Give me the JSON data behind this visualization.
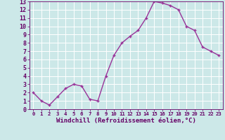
{
  "x": [
    0,
    1,
    2,
    3,
    4,
    5,
    6,
    7,
    8,
    9,
    10,
    11,
    12,
    13,
    14,
    15,
    16,
    17,
    18,
    19,
    20,
    21,
    22,
    23
  ],
  "y": [
    2,
    1,
    0.5,
    1.5,
    2.5,
    3,
    2.8,
    1.2,
    1,
    4,
    6.5,
    8,
    8.8,
    9.5,
    11,
    13,
    12.8,
    12.5,
    12,
    10,
    9.5,
    7.5,
    7,
    6.5
  ],
  "line_color": "#993399",
  "marker": "+",
  "marker_color": "#993399",
  "bg_color": "#cce8e8",
  "grid_color": "#ffffff",
  "xlabel": "Windchill (Refroidissement éolien,°C)",
  "xlim": [
    -0.5,
    23.5
  ],
  "ylim": [
    0,
    13
  ],
  "yticks": [
    0,
    1,
    2,
    3,
    4,
    5,
    6,
    7,
    8,
    9,
    10,
    11,
    12,
    13
  ],
  "xticks": [
    0,
    1,
    2,
    3,
    4,
    5,
    6,
    7,
    8,
    9,
    10,
    11,
    12,
    13,
    14,
    15,
    16,
    17,
    18,
    19,
    20,
    21,
    22,
    23
  ],
  "xlabel_fontsize": 6.5,
  "ytick_fontsize": 6.0,
  "xtick_fontsize": 5.2,
  "label_color": "#660066",
  "linewidth": 1.0,
  "markersize": 3.5,
  "markeredgewidth": 1.0
}
